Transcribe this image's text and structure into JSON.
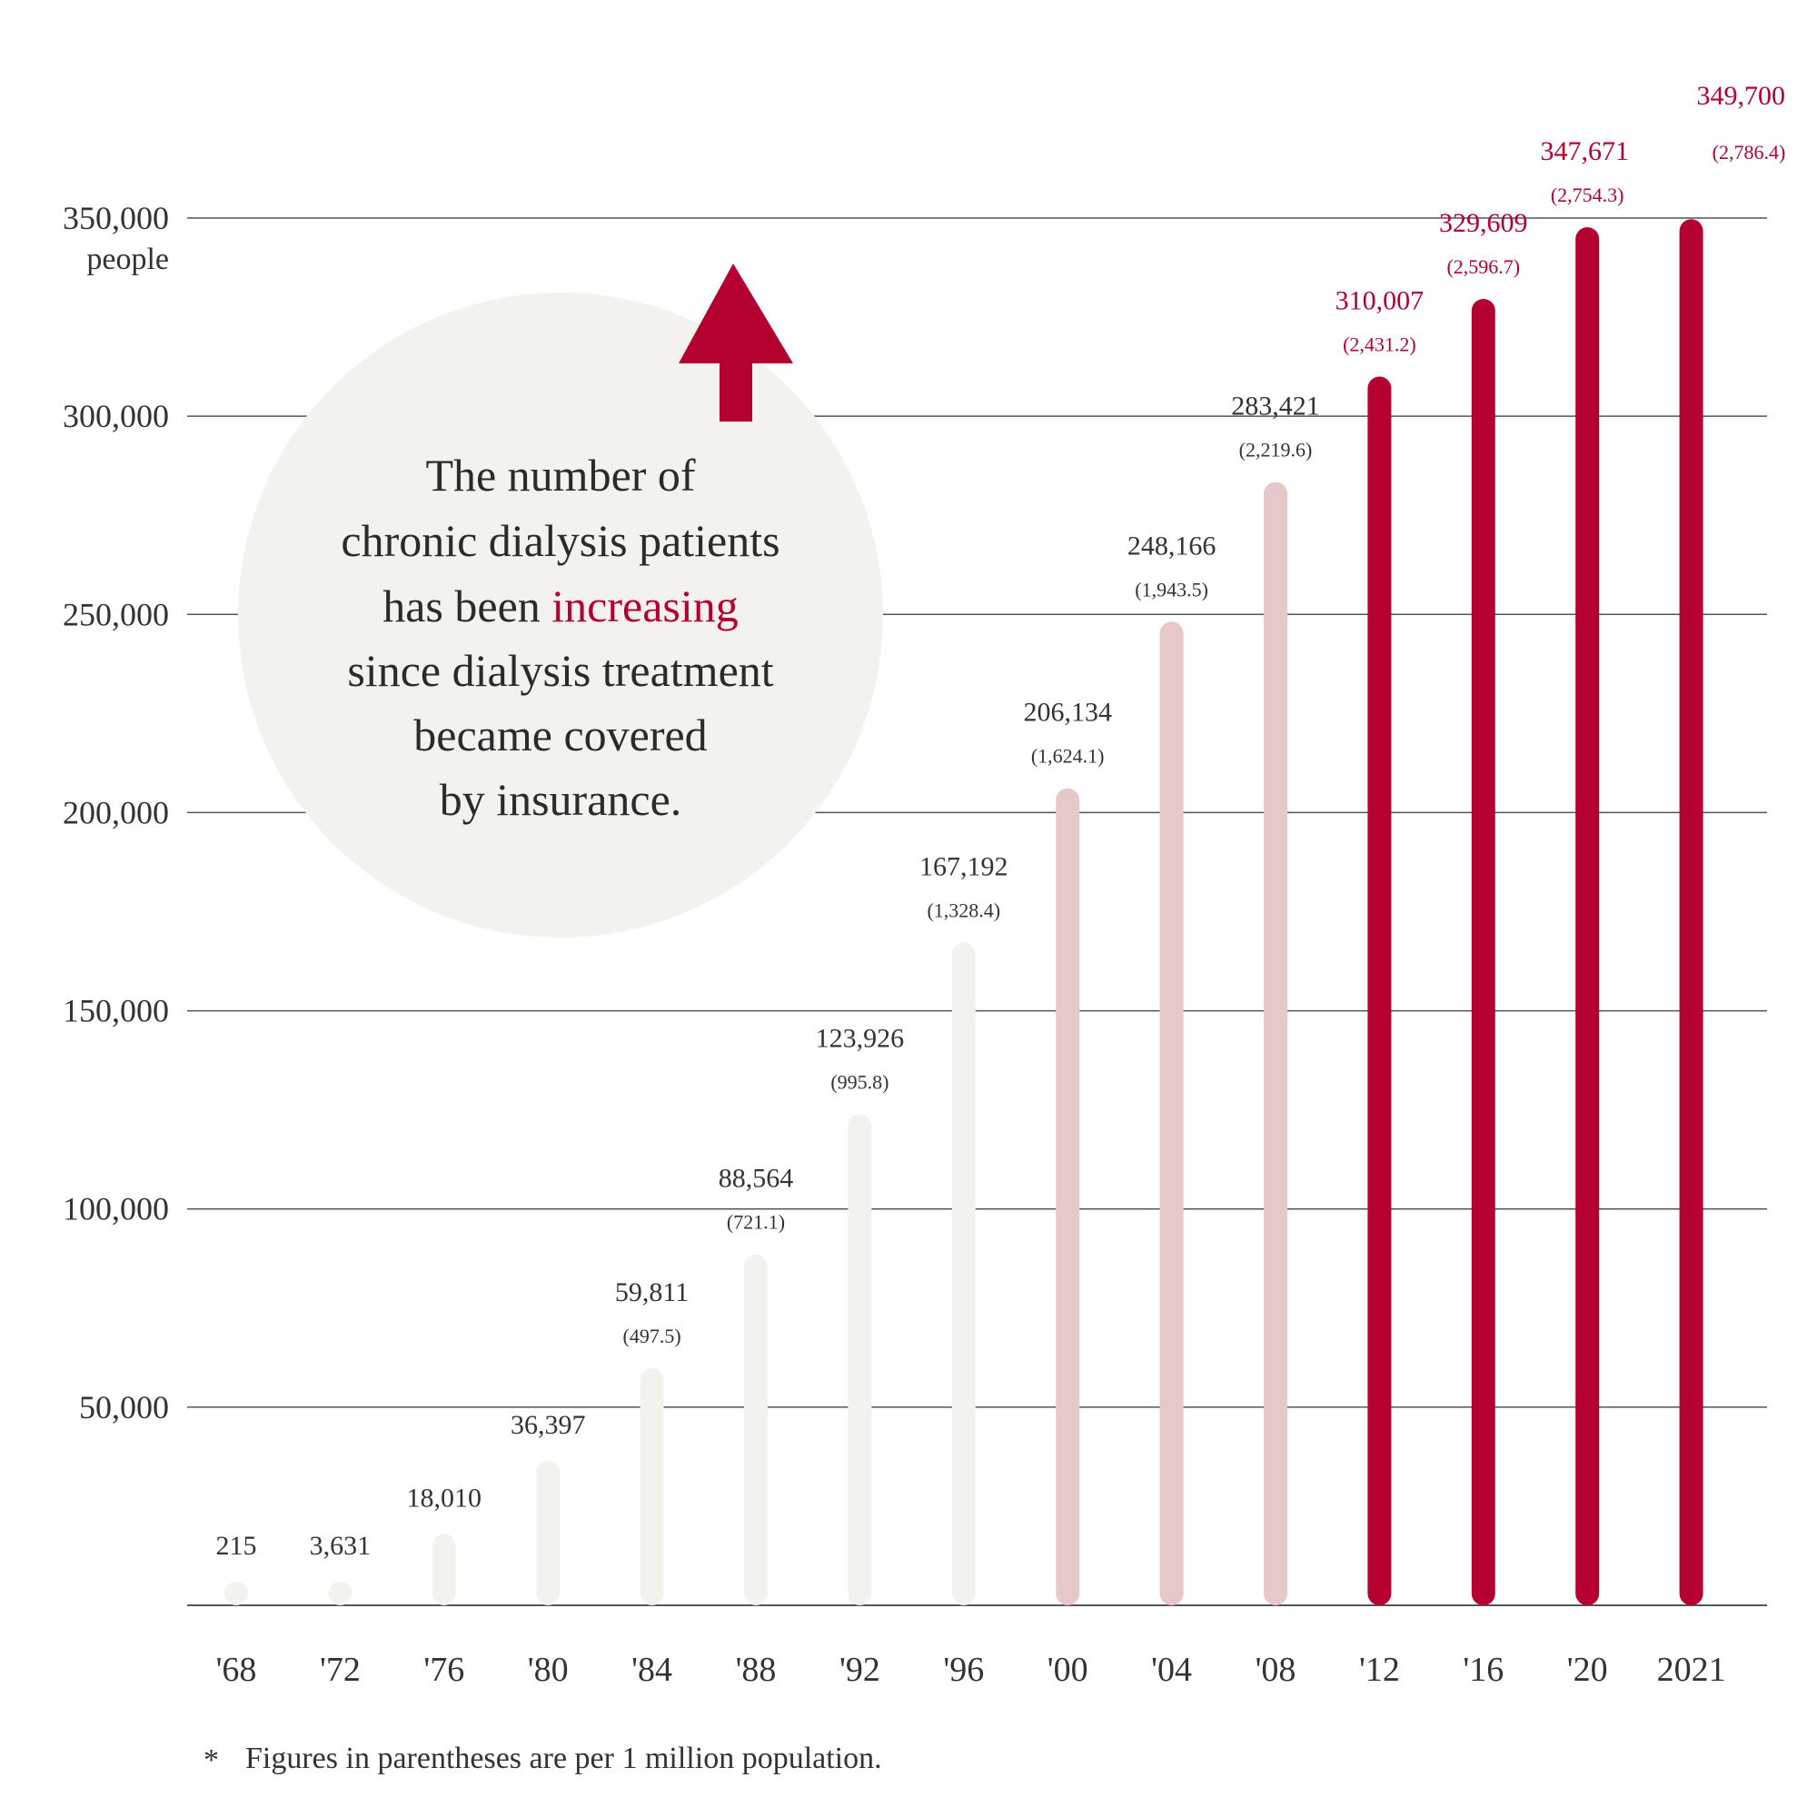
{
  "chart_data": {
    "type": "bar",
    "categories": [
      "'68",
      "'72",
      "'76",
      "'80",
      "'84",
      "'88",
      "'92",
      "'96",
      "'00",
      "'04",
      "'08",
      "'12",
      "'16",
      "'20",
      "2021"
    ],
    "values": [
      215,
      3631,
      18010,
      36397,
      59811,
      88564,
      123926,
      167192,
      206134,
      248166,
      283421,
      310007,
      329609,
      347671,
      349700
    ],
    "value_labels": [
      "215",
      "3,631",
      "18,010",
      "36,397",
      "59,811",
      "88,564",
      "123,926",
      "167,192",
      "206,134",
      "248,166",
      "283,421",
      "310,007",
      "329,609",
      "347,671",
      "349,700"
    ],
    "per_million_labels": [
      "",
      "",
      "",
      "",
      "(497.5)",
      "(721.1)",
      "(995.8)",
      "(1,328.4)",
      "(1,624.1)",
      "(1,943.5)",
      "(2,219.6)",
      "(2,431.2)",
      "(2,596.7)",
      "(2,754.3)",
      "(2,786.4)"
    ],
    "ylim": [
      0,
      350000
    ],
    "yticks": [
      50000,
      100000,
      150000,
      200000,
      250000,
      300000,
      350000
    ],
    "ytick_labels": [
      "50,000",
      "100,000",
      "150,000",
      "200,000",
      "250,000",
      "300,000",
      "350,000"
    ],
    "y_unit": "people",
    "grid": true,
    "colors": {
      "early": "#f3f2ef",
      "middle": "#e6c8ca",
      "recent": "#b5012f",
      "grid": "#555555",
      "text": "#333333",
      "callout_bg": "#f3f2ef"
    },
    "color_groups": [
      "early",
      "early",
      "early",
      "early",
      "early",
      "early",
      "early",
      "early",
      "middle",
      "middle",
      "middle",
      "recent",
      "recent",
      "recent",
      "recent"
    ]
  },
  "callout": {
    "line1": "The number of",
    "line2": "chronic dialysis patients",
    "line3_before": "has been ",
    "line3_highlight": "increasing",
    "line4": "since dialysis treatment",
    "line5": "became covered",
    "line6": "by insurance."
  },
  "footnote": {
    "mark": "*",
    "text": "Figures in parentheses are per 1 million population."
  }
}
